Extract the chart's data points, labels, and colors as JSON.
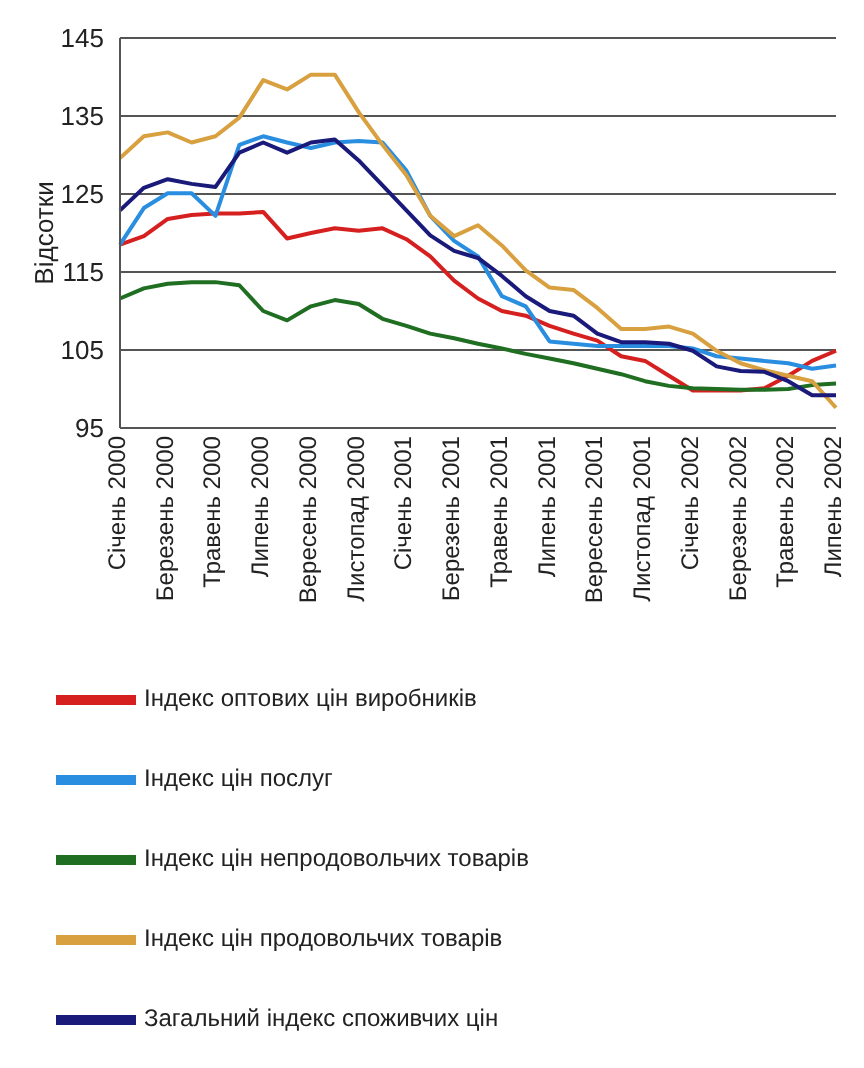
{
  "chart_data": {
    "type": "line",
    "ylabel": "Відсотки",
    "categories": [
      "Січень 2000",
      null,
      "Березень 2000",
      null,
      "Травень 2000",
      null,
      "Липень 2000",
      null,
      "Вересень 2000",
      null,
      "Листопад 2000",
      null,
      "Січень 2001",
      null,
      "Березень 2001",
      null,
      "Травень 2001",
      null,
      "Липень 2001",
      null,
      "Вересень 2001",
      null,
      "Листопад 2001",
      null,
      "Січень 2002",
      null,
      "Березень 2002",
      null,
      "Травень 2002",
      null,
      "Липень 2002"
    ],
    "series": [
      {
        "name": "Індекс оптових цін виробників",
        "color": "#d62020",
        "values": [
          118.5,
          119.6,
          121.8,
          122.3,
          122.5,
          122.5,
          122.7,
          119.3,
          120,
          120.6,
          120.3,
          120.6,
          119.2,
          117,
          113.9,
          111.6,
          110,
          109.4,
          108.1,
          107.1,
          106.2,
          104.2,
          103.6,
          101.7,
          99.8,
          99.8,
          99.8,
          100.1,
          101.7,
          103.6,
          104.9
        ]
      },
      {
        "name": "Індекс цін послуг",
        "color": "#2a8ee0",
        "values": [
          118.5,
          123.2,
          125.1,
          125.1,
          122.2,
          131.3,
          132.4,
          131.6,
          130.9,
          131.6,
          131.8,
          131.6,
          128,
          122.2,
          119,
          117,
          111.9,
          110.6,
          106.1,
          105.8,
          105.5,
          105.5,
          105.5,
          105.5,
          105.2,
          104.2,
          103.9,
          103.6,
          103.3,
          102.6,
          103
        ]
      },
      {
        "name": "Індекс цін непродовольчих товарів",
        "color": "#1f6e22",
        "values": [
          111.6,
          112.9,
          113.5,
          113.7,
          113.7,
          113.3,
          110,
          108.8,
          110.6,
          111.4,
          110.9,
          109,
          108.1,
          107.1,
          106.5,
          105.8,
          105.2,
          104.5,
          103.9,
          103.3,
          102.6,
          101.9,
          101,
          100.4,
          100.1,
          100,
          99.9,
          99.9,
          100,
          100.5,
          100.7
        ]
      },
      {
        "name": "Індекс цін продовольчих товарів",
        "color": "#d9a040",
        "values": [
          129.6,
          132.4,
          132.9,
          131.6,
          132.4,
          134.8,
          139.6,
          138.4,
          140.3,
          140.3,
          135.5,
          131.3,
          127.4,
          122.2,
          119.6,
          121,
          118.4,
          115.2,
          113,
          112.7,
          110.4,
          107.7,
          107.7,
          108,
          107.1,
          104.9,
          103.3,
          102.4,
          101.7,
          101,
          97.6
        ]
      },
      {
        "name": "Загальний індекс споживчих цін",
        "color": "#1a1a7a",
        "values": [
          122.9,
          125.8,
          126.9,
          126.3,
          125.9,
          130.3,
          131.6,
          130.3,
          131.6,
          132,
          129.3,
          126.1,
          122.9,
          119.7,
          117.7,
          116.8,
          114.5,
          111.9,
          110,
          109.4,
          107.1,
          106,
          106,
          105.8,
          104.9,
          102.9,
          102.3,
          102.2,
          101,
          99.2,
          99.2
        ]
      }
    ],
    "ylim": [
      95,
      145
    ],
    "yticks": [
      95,
      105,
      115,
      125,
      135,
      145
    ],
    "grid": "y",
    "legend": "bottom",
    "marker": "none",
    "line_style": "solid"
  }
}
